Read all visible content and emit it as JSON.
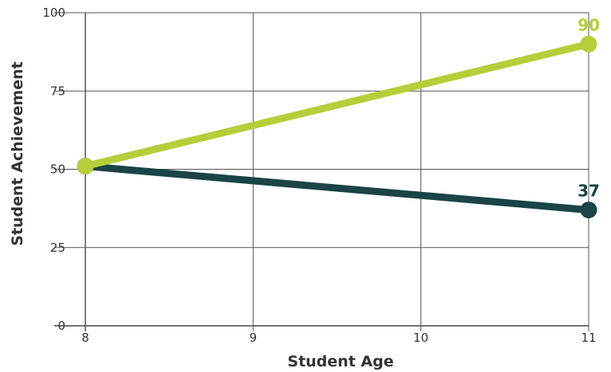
{
  "chart_data": {
    "type": "line",
    "title": "",
    "xlabel": "Student Age",
    "ylabel": "Student Achievement",
    "x": [
      8,
      11
    ],
    "xticks": [
      "8",
      "9",
      "10",
      "11"
    ],
    "yticks": [
      "0",
      "25",
      "50",
      "75",
      "100"
    ],
    "xlim": [
      8,
      11
    ],
    "ylim": [
      0,
      100
    ],
    "grid": true,
    "series": [
      {
        "values": [
          51,
          90
        ],
        "color": "#b4cf3a",
        "end_label": "90"
      },
      {
        "values": [
          51,
          37
        ],
        "color": "#1a4446",
        "end_label": "37"
      }
    ]
  }
}
